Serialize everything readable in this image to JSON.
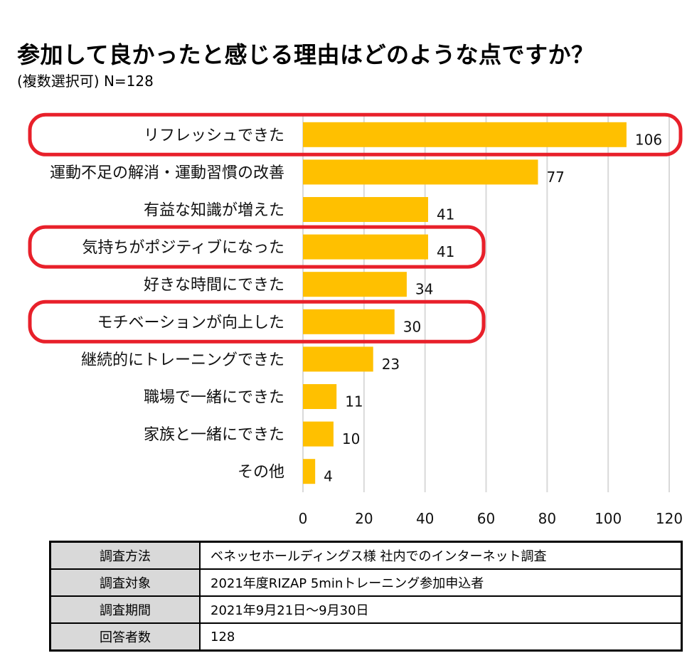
{
  "header": {
    "title": "参加して良かったと感じる理由はどのような点ですか？",
    "subtitle": "(複数選択可) N=128"
  },
  "colors": {
    "bar": "#FFC000",
    "highlight": "#E8202A",
    "grid": "#D9D9D9",
    "table_key_bg": "#D9D9D9"
  },
  "chart_data": {
    "type": "bar",
    "orientation": "horizontal",
    "categories": [
      "リフレッシュできた",
      "運動不足の解消・運動習慣の改善",
      "有益な知識が増えた",
      "気持ちがポジティブになった",
      "好きな時間にできた",
      "モチベーションが向上した",
      "継続的にトレーニングできた",
      "職場で一緒にできた",
      "家族と一緒にできた",
      "その他"
    ],
    "values": [
      106,
      77,
      41,
      41,
      34,
      30,
      23,
      11,
      10,
      4
    ],
    "highlighted": [
      "リフレッシュできた",
      "気持ちがポジティブになった",
      "モチベーションが向上した"
    ],
    "xlim": [
      0,
      120
    ],
    "xticks": [
      0,
      20,
      40,
      60,
      80,
      100,
      120
    ],
    "grid": true,
    "legend": "none"
  },
  "info_table": [
    {
      "key": "調査方法",
      "value": "ベネッセホールディングス様 社内でのインターネット調査"
    },
    {
      "key": "調査対象",
      "value": "2021年度RIZAP 5minトレーニング参加申込者"
    },
    {
      "key": "調査期間",
      "value": "2021年9月21日～9月30日"
    },
    {
      "key": "回答者数",
      "value": "128"
    }
  ]
}
